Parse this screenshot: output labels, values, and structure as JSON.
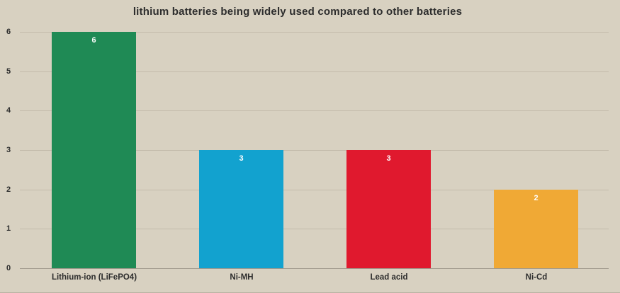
{
  "chart_data": {
    "type": "bar",
    "title": "lithium batteries being widely used compared to other batteries",
    "categories": [
      "Lithium-ion (LiFePO4)",
      "Ni-MH",
      "Lead acid",
      "Ni-Cd"
    ],
    "values": [
      6,
      3,
      3,
      2
    ],
    "bar_colors": [
      "#1f8a55",
      "#12a2cf",
      "#e0192e",
      "#f0a935"
    ],
    "value_labels": [
      "6",
      "3",
      "3",
      "2"
    ],
    "value_label_color": "#ffffff",
    "xlabel": "",
    "ylabel": "",
    "ylim": [
      0,
      6
    ],
    "yticks": [
      "0",
      "1",
      "2",
      "3",
      "4",
      "5",
      "6"
    ],
    "grid": true,
    "legend": false,
    "background_color": "#d8d1c1",
    "gridline_color": "#c3bbab",
    "axis_text_color": "#2d2d2d"
  }
}
